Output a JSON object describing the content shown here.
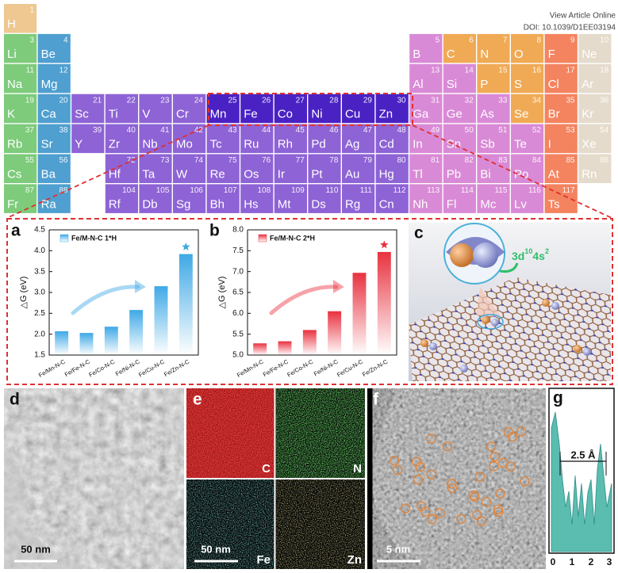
{
  "header": {
    "link": "View Article Online",
    "doi": "DOI: 10.1039/D1EE03194"
  },
  "periodic_table": {
    "rows": [
      [
        {
          "number": 1,
          "symbol": "H"
        },
        null,
        null,
        null,
        null,
        null,
        null,
        null,
        null,
        null,
        null,
        null,
        null,
        null,
        null,
        null,
        null,
        null
      ],
      [
        {
          "number": 3,
          "symbol": "Li"
        },
        {
          "number": 4,
          "symbol": "Be"
        },
        null,
        null,
        null,
        null,
        null,
        null,
        null,
        null,
        null,
        null,
        {
          "number": 5,
          "symbol": "B"
        },
        {
          "number": 6,
          "symbol": "C"
        },
        {
          "number": 7,
          "symbol": "N"
        },
        {
          "number": 8,
          "symbol": "O"
        },
        {
          "number": 9,
          "symbol": "F"
        },
        {
          "number": 10,
          "symbol": "Ne"
        }
      ],
      [
        {
          "number": 11,
          "symbol": "Na"
        },
        {
          "number": 12,
          "symbol": "Mg"
        },
        null,
        null,
        null,
        null,
        null,
        null,
        null,
        null,
        null,
        null,
        {
          "number": 13,
          "symbol": "Al"
        },
        {
          "number": 14,
          "symbol": "Si"
        },
        {
          "number": 15,
          "symbol": "P"
        },
        {
          "number": 16,
          "symbol": "S"
        },
        {
          "number": 17,
          "symbol": "Cl"
        },
        {
          "number": 18,
          "symbol": "Ar"
        }
      ],
      [
        {
          "number": 19,
          "symbol": "K"
        },
        {
          "number": 20,
          "symbol": "Ca"
        },
        {
          "number": 21,
          "symbol": "Sc"
        },
        {
          "number": 22,
          "symbol": "Ti"
        },
        {
          "number": 23,
          "symbol": "V"
        },
        {
          "number": 24,
          "symbol": "Cr"
        },
        {
          "number": 25,
          "symbol": "Mn"
        },
        {
          "number": 26,
          "symbol": "Fe"
        },
        {
          "number": 27,
          "symbol": "Co"
        },
        {
          "number": 28,
          "symbol": "Ni"
        },
        {
          "number": 29,
          "symbol": "Cu"
        },
        {
          "number": 30,
          "symbol": "Zn"
        },
        {
          "number": 31,
          "symbol": "Ga"
        },
        {
          "number": 32,
          "symbol": "Ge"
        },
        {
          "number": 33,
          "symbol": "As"
        },
        {
          "number": 34,
          "symbol": "Se"
        },
        {
          "number": 35,
          "symbol": "Br"
        },
        {
          "number": 36,
          "symbol": "Kr"
        }
      ],
      [
        {
          "number": 37,
          "symbol": "Rb"
        },
        {
          "number": 38,
          "symbol": "Sr"
        },
        {
          "number": 39,
          "symbol": "Y"
        },
        {
          "number": 40,
          "symbol": "Zr"
        },
        {
          "number": 41,
          "symbol": "Nb"
        },
        {
          "number": 42,
          "symbol": "Mo"
        },
        {
          "number": 43,
          "symbol": "Tc"
        },
        {
          "number": 44,
          "symbol": "Ru"
        },
        {
          "number": 45,
          "symbol": "Rh"
        },
        {
          "number": 46,
          "symbol": "Pd"
        },
        {
          "number": 47,
          "symbol": "Ag"
        },
        {
          "number": 48,
          "symbol": "Cd"
        },
        {
          "number": 49,
          "symbol": "In"
        },
        {
          "number": 50,
          "symbol": "Sn"
        },
        {
          "number": 51,
          "symbol": "Sb"
        },
        {
          "number": 52,
          "symbol": "Te"
        },
        {
          "number": 53,
          "symbol": "I"
        },
        {
          "number": 54,
          "symbol": "Xe"
        }
      ],
      [
        {
          "number": 55,
          "symbol": "Cs"
        },
        {
          "number": 56,
          "symbol": "Ba"
        },
        null,
        {
          "number": 72,
          "symbol": "Hf"
        },
        {
          "number": 73,
          "symbol": "Ta"
        },
        {
          "number": 74,
          "symbol": "W"
        },
        {
          "number": 75,
          "symbol": "Re"
        },
        {
          "number": 76,
          "symbol": "Os"
        },
        {
          "number": 77,
          "symbol": "Ir"
        },
        {
          "number": 78,
          "symbol": "Pt"
        },
        {
          "number": 79,
          "symbol": "Au"
        },
        {
          "number": 80,
          "symbol": "Hg"
        },
        {
          "number": 81,
          "symbol": "Tl"
        },
        {
          "number": 82,
          "symbol": "Pb"
        },
        {
          "number": 83,
          "symbol": "Bi"
        },
        {
          "number": 84,
          "symbol": "Po"
        },
        {
          "number": 85,
          "symbol": "At"
        },
        {
          "number": 86,
          "symbol": "Rn"
        }
      ],
      [
        {
          "number": 87,
          "symbol": "Fr"
        },
        {
          "number": 88,
          "symbol": "Ra"
        },
        null,
        {
          "number": 104,
          "symbol": "Rf"
        },
        {
          "number": 105,
          "symbol": "Db"
        },
        {
          "number": 106,
          "symbol": "Sg"
        },
        {
          "number": 107,
          "symbol": "Bh"
        },
        {
          "number": 108,
          "symbol": "Hs"
        },
        {
          "number": 109,
          "symbol": "Mt"
        },
        {
          "number": 110,
          "symbol": "Ds"
        },
        {
          "number": 111,
          "symbol": "Rg"
        },
        {
          "number": 112,
          "symbol": "Cn"
        },
        {
          "number": 113,
          "symbol": "Nh"
        },
        {
          "number": 114,
          "symbol": "Fl"
        },
        {
          "number": 115,
          "symbol": "Mc"
        },
        {
          "number": 116,
          "symbol": "Lv"
        },
        {
          "number": 117,
          "symbol": "Ts"
        },
        null
      ]
    ]
  },
  "chart_data": [
    {
      "type": "bar",
      "panel_label": "a",
      "ylabel": "△G (eV)",
      "categories": [
        "Fe/Mn-N-C",
        "Fe/Fe-N-C",
        "Fe/Co-N-C",
        "Fe/Ni-N-C",
        "Fe/Cu-N-C",
        "Fe/Zn-N-C"
      ],
      "series": [
        {
          "name": "Fe/M-N-C 1*H",
          "color": "#3fa9e6",
          "values": [
            2.07,
            2.03,
            2.18,
            2.58,
            3.15,
            3.92
          ]
        }
      ],
      "ylim": [
        1.5,
        4.5
      ],
      "yticks": [
        {
          "value": 1.5,
          "label": "1.5"
        },
        {
          "value": 2.0,
          "label": "2.0"
        },
        {
          "value": 2.5,
          "label": "2.5"
        },
        {
          "value": 3.0,
          "label": "3.0"
        },
        {
          "value": 3.5,
          "label": "3.5"
        },
        {
          "value": 4.0,
          "label": "4.0"
        },
        {
          "value": 4.5,
          "label": "4.5"
        }
      ]
    },
    {
      "type": "bar",
      "panel_label": "b",
      "ylabel": "△G (eV)",
      "categories": [
        "Fe/Mn-N-C",
        "Fe/Fe-N-C",
        "Fe/Co-N-C",
        "Fe/Ni-N-C",
        "Fe/Cu-N-C",
        "Fe/Zn-N-C"
      ],
      "series": [
        {
          "name": "Fe/M-N-C 2*H",
          "color": "#e8323f",
          "values": [
            5.28,
            5.33,
            5.6,
            6.05,
            6.97,
            7.47
          ]
        }
      ],
      "ylim": [
        5.0,
        8.0
      ],
      "yticks": [
        {
          "value": 5.0,
          "label": "5.0"
        },
        {
          "value": 5.5,
          "label": "5.5"
        },
        {
          "value": 6.0,
          "label": "6.0"
        },
        {
          "value": 6.5,
          "label": "6.5"
        },
        {
          "value": 7.0,
          "label": "7.0"
        },
        {
          "value": 7.5,
          "label": "7.5"
        },
        {
          "value": 8.0,
          "label": "8.0"
        }
      ]
    }
  ],
  "panels": {
    "c": {
      "label": "c",
      "orbital": [
        "3d",
        "10",
        "4s",
        "2"
      ]
    },
    "d": {
      "label": "d",
      "scale": "50 nm"
    },
    "e": {
      "label": "e",
      "scale": "50 nm",
      "maps": [
        "C",
        "N",
        "Fe",
        "Zn"
      ]
    },
    "f": {
      "label": "f",
      "scale": "5 nm"
    },
    "g": {
      "label": "g",
      "distance": "2.5 Å",
      "xticks": [
        "0",
        "1",
        "2",
        "3"
      ]
    }
  }
}
